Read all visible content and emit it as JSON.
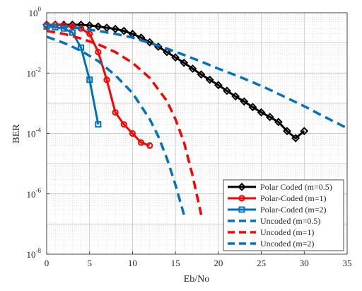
{
  "chart_data": {
    "type": "line",
    "title": "",
    "xlabel": "Eb/No",
    "ylabel": "BER",
    "x_scale": "linear",
    "y_scale": "log",
    "xlim": [
      0,
      35
    ],
    "ylim": [
      1e-08,
      1
    ],
    "x_ticks": [
      0,
      5,
      10,
      15,
      20,
      25,
      30,
      35
    ],
    "x_tick_labels": [
      "0",
      "5",
      "10",
      "15",
      "20",
      "25",
      "30",
      "35"
    ],
    "y_ticks": [
      1e-08,
      1e-06,
      0.0001,
      0.01,
      1
    ],
    "y_tick_labels": [
      {
        "base": "10",
        "exp": "-8"
      },
      {
        "base": "10",
        "exp": "-6"
      },
      {
        "base": "10",
        "exp": "-4"
      },
      {
        "base": "10",
        "exp": "-2"
      },
      {
        "base": "10",
        "exp": "0"
      }
    ],
    "grid": true,
    "minor_grid": true,
    "legend_position": "bottom-right",
    "series": [
      {
        "name": "Polar Coded (m=0.5)",
        "color": "#000000",
        "style": "solid",
        "marker": "diamond",
        "x": [
          0,
          1,
          2,
          3,
          4,
          5,
          6,
          7,
          8,
          9,
          10,
          11,
          12,
          13,
          14,
          15,
          16,
          17,
          18,
          19,
          20,
          21,
          22,
          23,
          24,
          25,
          26,
          27,
          28,
          29,
          30
        ],
        "y": [
          0.4,
          0.4,
          0.4,
          0.4,
          0.4,
          0.38,
          0.35,
          0.32,
          0.29,
          0.25,
          0.2,
          0.15,
          0.105,
          0.075,
          0.05,
          0.033,
          0.022,
          0.014,
          0.009,
          0.006,
          0.004,
          0.0026,
          0.0017,
          0.00115,
          0.00075,
          0.0005,
          0.00035,
          0.00024,
          0.00012,
          7e-05,
          0.00012
        ]
      },
      {
        "name": "Polar-Coded (m=1)",
        "color": "#ff0000",
        "style": "solid",
        "marker": "circle",
        "x": [
          0,
          1,
          2,
          3,
          4,
          5,
          6,
          7,
          8,
          9,
          10,
          11,
          12
        ],
        "y": [
          0.4,
          0.4,
          0.38,
          0.35,
          0.3,
          0.2,
          0.05,
          0.006,
          0.0005,
          0.0002,
          0.0001,
          5e-05,
          4e-05
        ]
      },
      {
        "name": "Polar-Coded (m=2)",
        "color": "#0072bd",
        "style": "solid",
        "marker": "square",
        "x": [
          0,
          1,
          2,
          3,
          4,
          5,
          6
        ],
        "y": [
          0.35,
          0.33,
          0.3,
          0.22,
          0.07,
          0.006,
          0.0002
        ]
      },
      {
        "name": "Uncoded (m=0.5)",
        "color": "#0072bd",
        "style": "dashed",
        "marker": "none",
        "x": [
          0,
          2,
          4,
          6,
          8,
          10,
          12,
          14,
          16,
          18,
          20,
          22,
          24,
          26,
          28,
          30,
          32,
          35
        ],
        "y": [
          0.38,
          0.35,
          0.3,
          0.25,
          0.2,
          0.15,
          0.1,
          0.065,
          0.04,
          0.024,
          0.014,
          0.0085,
          0.005,
          0.0028,
          0.0015,
          0.0008,
          0.0004,
          0.00015
        ]
      },
      {
        "name": "Uncoded (m=1)",
        "color": "#ff0000",
        "style": "dashed",
        "marker": "none",
        "x": [
          0,
          2,
          4,
          6,
          8,
          10,
          12,
          14,
          15,
          16,
          17,
          18
        ],
        "y": [
          0.25,
          0.2,
          0.14,
          0.09,
          0.05,
          0.022,
          0.007,
          0.0012,
          0.0003,
          5e-05,
          4e-06,
          2e-07
        ]
      },
      {
        "name": "Uncoded (m=2)",
        "color": "#0072bd",
        "style": "dashed",
        "marker": "none",
        "x": [
          0,
          2,
          4,
          6,
          8,
          10,
          12,
          13,
          14,
          15,
          16
        ],
        "y": [
          0.16,
          0.1,
          0.055,
          0.025,
          0.0085,
          0.0022,
          0.0003,
          8e-05,
          1.5e-05,
          2e-06,
          2e-07
        ]
      }
    ]
  }
}
